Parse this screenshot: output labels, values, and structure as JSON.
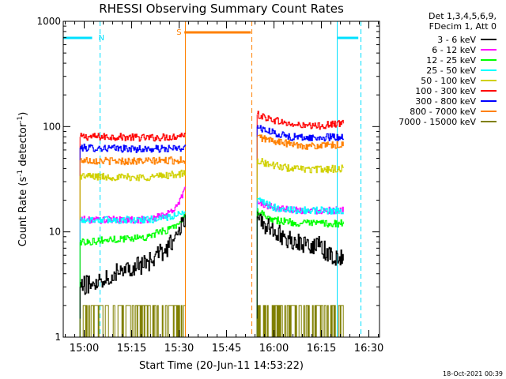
{
  "chart_data": {
    "type": "line",
    "title": "RHESSI Observing Summary Count Rates",
    "xlabel": "Start Time (20-Jun-11 14:53:22)",
    "ylabel_parts": [
      "Count Rate (s",
      "-1",
      " detector",
      "-1",
      ")"
    ],
    "x_time_range": [
      "14:53:22",
      "16:33:22"
    ],
    "x_ticks": [
      "15:00",
      "15:15",
      "15:30",
      "15:45",
      "16:00",
      "16:15",
      "16:30"
    ],
    "y_scale": "log",
    "y_range": [
      1,
      1000
    ],
    "y_ticks": [
      "1",
      "10",
      "100",
      "1000"
    ],
    "footer": "18-Oct-2021 00:39",
    "legend": {
      "header": [
        "Det 1,3,4,5,6,9,",
        "FDecim 1, Att 0"
      ],
      "entries": [
        {
          "label": "3 - 6 keV",
          "color": "#000000"
        },
        {
          "label": "6 - 12 keV",
          "color": "#ff00ff"
        },
        {
          "label": "12 - 25 keV",
          "color": "#00ff00"
        },
        {
          "label": "25 - 50 keV",
          "color": "#00ffff"
        },
        {
          "label": "50 - 100 keV",
          "color": "#d0d000"
        },
        {
          "label": "100 - 300 keV",
          "color": "#ff0000"
        },
        {
          "label": "300 - 800 keV",
          "color": "#0000ff"
        },
        {
          "label": "800 - 7000 keV",
          "color": "#ff8000"
        },
        {
          "label": "7000 - 15000 keV",
          "color": "#808000"
        }
      ]
    },
    "flags": [
      {
        "label": "N",
        "color": "#00e0ff",
        "bars": [
          [
            "14:53:22",
            "15:02:30"
          ],
          [
            "16:20:10",
            "16:26:40"
          ]
        ],
        "marker_at": "15:02:30",
        "dashed_at": [
          "15:05:00",
          "16:27:30"
        ],
        "solid_at": [
          "14:53:22",
          "16:20:00"
        ]
      },
      {
        "label": "S",
        "color": "#ff8000",
        "bars": [
          [
            "15:31:40",
            "15:52:40"
          ]
        ],
        "marker_at": "15:31:40",
        "dashed_at": [
          "15:53:00"
        ],
        "solid_at": [
          "15:32:00"
        ]
      }
    ],
    "series": [
      {
        "name": "100 - 300 keV",
        "color": "#ff0000",
        "segments": [
          {
            "x": [
              "14:58:40",
              "15:10:00",
              "15:20:00",
              "15:28:00",
              "15:32:00"
            ],
            "y": [
              80,
              80,
              78,
              80,
              85
            ]
          },
          {
            "x": [
              "15:54:40",
              "15:58:00",
              "16:05:00",
              "16:12:00",
              "16:22:00"
            ],
            "y": [
              130,
              120,
              105,
              100,
              108
            ]
          }
        ]
      },
      {
        "name": "300 - 800 keV",
        "color": "#0000ff",
        "segments": [
          {
            "x": [
              "14:58:40",
              "15:10:00",
              "15:20:00",
              "15:32:00"
            ],
            "y": [
              63,
              62,
              61,
              62
            ]
          },
          {
            "x": [
              "15:54:40",
              "15:58:00",
              "16:05:00",
              "16:12:00",
              "16:22:00"
            ],
            "y": [
              100,
              90,
              80,
              78,
              80
            ]
          }
        ]
      },
      {
        "name": "800 - 7000 keV",
        "color": "#ff8000",
        "segments": [
          {
            "x": [
              "14:58:40",
              "15:10:00",
              "15:20:00",
              "15:32:00"
            ],
            "y": [
              48,
              47,
              47,
              48
            ]
          },
          {
            "x": [
              "15:54:40",
              "15:58:00",
              "16:05:00",
              "16:12:00",
              "16:22:00"
            ],
            "y": [
              80,
              75,
              68,
              65,
              67
            ]
          }
        ]
      },
      {
        "name": "50 - 100 keV",
        "color": "#d0d000",
        "segments": [
          {
            "x": [
              "14:58:40",
              "15:10:00",
              "15:20:00",
              "15:32:00"
            ],
            "y": [
              34,
              33,
              33,
              36
            ]
          },
          {
            "x": [
              "15:54:40",
              "15:58:00",
              "16:05:00",
              "16:12:00",
              "16:22:00"
            ],
            "y": [
              48,
              44,
              40,
              39,
              40
            ]
          }
        ]
      },
      {
        "name": "6 - 12 keV",
        "color": "#ff00ff",
        "segments": [
          {
            "x": [
              "14:58:40",
              "15:10:00",
              "15:20:00",
              "15:27:00",
              "15:30:00",
              "15:32:00"
            ],
            "y": [
              13,
              13,
              13,
              15,
              19,
              28
            ]
          },
          {
            "x": [
              "15:54:40",
              "16:00:00",
              "16:08:00",
              "16:15:00",
              "16:22:00"
            ],
            "y": [
              19,
              17,
              16,
              16,
              16
            ]
          }
        ]
      },
      {
        "name": "25 - 50 keV",
        "color": "#00ffff",
        "segments": [
          {
            "x": [
              "14:58:40",
              "15:10:00",
              "15:20:00",
              "15:28:00",
              "15:32:00"
            ],
            "y": [
              13,
              13,
              13,
              14,
              15
            ]
          },
          {
            "x": [
              "15:54:40",
              "16:00:00",
              "16:08:00",
              "16:15:00",
              "16:22:00"
            ],
            "y": [
              20,
              17,
              16,
              16,
              16
            ]
          }
        ]
      },
      {
        "name": "12 - 25 keV",
        "color": "#00ff00",
        "segments": [
          {
            "x": [
              "14:58:40",
              "15:10:00",
              "15:20:00",
              "15:28:00",
              "15:32:00"
            ],
            "y": [
              8,
              8.5,
              9,
              11,
              14
            ]
          },
          {
            "x": [
              "15:54:40",
              "16:00:00",
              "16:08:00",
              "16:15:00",
              "16:22:00"
            ],
            "y": [
              16,
              13,
              12,
              12,
              12
            ]
          }
        ]
      },
      {
        "name": "3 - 6 keV",
        "color": "#000000",
        "segments": [
          {
            "x": [
              "14:58:40",
              "15:05:00",
              "15:12:00",
              "15:20:00",
              "15:26:00",
              "15:30:00",
              "15:32:00"
            ],
            "y": [
              3,
              3.5,
              4.5,
              5,
              7,
              10,
              14
            ]
          },
          {
            "x": [
              "15:54:40",
              "15:58:00",
              "16:03:00",
              "16:08:00",
              "16:14:00",
              "16:18:00",
              "16:22:00"
            ],
            "y": [
              14,
              11,
              9,
              7.8,
              7.5,
              6,
              5.5
            ]
          }
        ]
      },
      {
        "name": "7000 - 15000 keV",
        "color": "#808000",
        "segments": [
          {
            "x": [
              "14:58:40",
              "15:32:00"
            ],
            "y": [
              1.5,
              1.5
            ]
          },
          {
            "x": [
              "15:54:40",
              "16:22:00"
            ],
            "y": [
              1.5,
              1.5
            ]
          }
        ]
      }
    ]
  }
}
